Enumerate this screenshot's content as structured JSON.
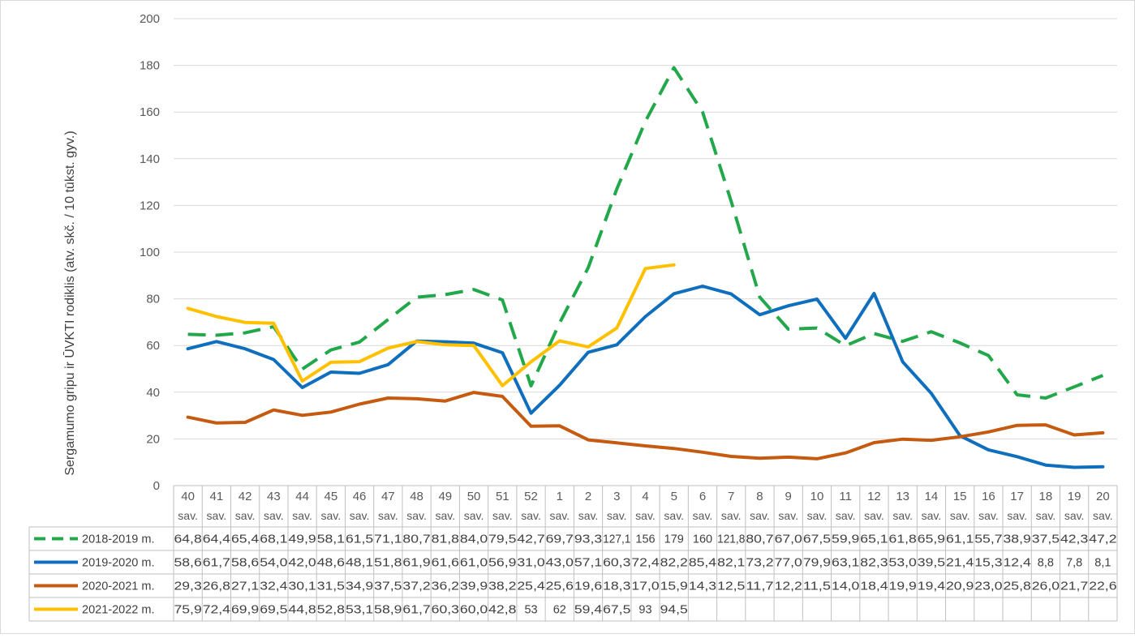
{
  "chart_data": {
    "type": "line",
    "title": "",
    "ylabel": "Sergamumo gripu ir ŪVKTI rodiklis (atv. skč. / 10 tūkst. gyv.)",
    "ylim": [
      0,
      200
    ],
    "yticks": [
      0,
      20,
      40,
      60,
      80,
      100,
      120,
      140,
      160,
      180,
      200
    ],
    "categories": [
      {
        "week": "40",
        "unit": "sav."
      },
      {
        "week": "41",
        "unit": "sav."
      },
      {
        "week": "42",
        "unit": "sav."
      },
      {
        "week": "43",
        "unit": "sav."
      },
      {
        "week": "44",
        "unit": "sav."
      },
      {
        "week": "45",
        "unit": "sav."
      },
      {
        "week": "46",
        "unit": "sav."
      },
      {
        "week": "47",
        "unit": "sav."
      },
      {
        "week": "48",
        "unit": "sav."
      },
      {
        "week": "49",
        "unit": "sav."
      },
      {
        "week": "50",
        "unit": "sav."
      },
      {
        "week": "51",
        "unit": "sav."
      },
      {
        "week": "52",
        "unit": "sav."
      },
      {
        "week": "1",
        "unit": "sav."
      },
      {
        "week": "2",
        "unit": "sav."
      },
      {
        "week": "3",
        "unit": "sav."
      },
      {
        "week": "4",
        "unit": "sav."
      },
      {
        "week": "5",
        "unit": "sav."
      },
      {
        "week": "6",
        "unit": "sav."
      },
      {
        "week": "7",
        "unit": "sav."
      },
      {
        "week": "8",
        "unit": "sav."
      },
      {
        "week": "9",
        "unit": "sav."
      },
      {
        "week": "10",
        "unit": "sav."
      },
      {
        "week": "11",
        "unit": "sav."
      },
      {
        "week": "12",
        "unit": "sav."
      },
      {
        "week": "13",
        "unit": "sav."
      },
      {
        "week": "14",
        "unit": "sav."
      },
      {
        "week": "15",
        "unit": "sav."
      },
      {
        "week": "16",
        "unit": "sav."
      },
      {
        "week": "17",
        "unit": "sav."
      },
      {
        "week": "18",
        "unit": "sav."
      },
      {
        "week": "19",
        "unit": "sav."
      },
      {
        "week": "20",
        "unit": "sav."
      }
    ],
    "grid": true,
    "legend": "data-table-left",
    "series": [
      {
        "name": "2018-2019 m.",
        "color": "#22a84a",
        "dash": true,
        "values": [
          64.8,
          64.4,
          65.4,
          68.1,
          49.9,
          58.1,
          61.5,
          71.1,
          80.7,
          81.8,
          84.0,
          79.5,
          42.7,
          69.7,
          93.3,
          127.1,
          156,
          179,
          160,
          121.8,
          80.7,
          67.0,
          67.5,
          59.9,
          65.1,
          61.8,
          65.9,
          61.1,
          55.7,
          38.9,
          37.5,
          42.3,
          47.2
        ],
        "labels": [
          "64,8",
          "64,4",
          "65,4",
          "68,1",
          "49,9",
          "58,1",
          "61,5",
          "71,1",
          "80,7",
          "81,8",
          "84,0",
          "79,5",
          "42,7",
          "69,7",
          "93,3",
          "127,1",
          "156",
          "179",
          "160",
          "121,8",
          "80,7",
          "67,0",
          "67,5",
          "59,9",
          "65,1",
          "61,8",
          "65,9",
          "61,1",
          "55,7",
          "38,9",
          "37,5",
          "42,3",
          "47,2"
        ]
      },
      {
        "name": "2019-2020 m.",
        "color": "#0f6fbd",
        "dash": false,
        "values": [
          58.6,
          61.7,
          58.6,
          54.0,
          42.0,
          48.6,
          48.1,
          51.8,
          61.9,
          61.6,
          61.0,
          56.9,
          31.0,
          43.0,
          57.1,
          60.3,
          72.4,
          82.2,
          85.4,
          82.1,
          73.2,
          77.0,
          79.9,
          63.1,
          82.3,
          53.0,
          39.5,
          21.4,
          15.3,
          12.4,
          8.8,
          7.8,
          8.1
        ],
        "labels": [
          "58,6",
          "61,7",
          "58,6",
          "54,0",
          "42,0",
          "48,6",
          "48,1",
          "51,8",
          "61,9",
          "61,6",
          "61,0",
          "56,9",
          "31,0",
          "43,0",
          "57,1",
          "60,3",
          "72,4",
          "82,2",
          "85,4",
          "82,1",
          "73,2",
          "77,0",
          "79,9",
          "63,1",
          "82,3",
          "53,0",
          "39,5",
          "21,4",
          "15,3",
          "12,4",
          "8,8",
          "7,8",
          "8,1"
        ]
      },
      {
        "name": "2020-2021 m.",
        "color": "#c55a11",
        "dash": false,
        "values": [
          29.3,
          26.8,
          27.1,
          32.4,
          30.1,
          31.5,
          34.9,
          37.5,
          37.2,
          36.2,
          39.9,
          38.2,
          25.4,
          25.6,
          19.6,
          18.3,
          17.0,
          15.9,
          14.3,
          12.5,
          11.7,
          12.2,
          11.5,
          14.0,
          18.4,
          19.9,
          19.4,
          20.9,
          23.0,
          25.8,
          26.0,
          21.7,
          22.6
        ],
        "labels": [
          "29,3",
          "26,8",
          "27,1",
          "32,4",
          "30,1",
          "31,5",
          "34,9",
          "37,5",
          "37,2",
          "36,2",
          "39,9",
          "38,2",
          "25,4",
          "25,6",
          "19,6",
          "18,3",
          "17,0",
          "15,9",
          "14,3",
          "12,5",
          "11,7",
          "12,2",
          "11,5",
          "14,0",
          "18,4",
          "19,9",
          "19,4",
          "20,9",
          "23,0",
          "25,8",
          "26,0",
          "21,7",
          "22,6"
        ]
      },
      {
        "name": "2021-2022 m.",
        "color": "#ffc000",
        "dash": false,
        "values": [
          75.9,
          72.4,
          69.9,
          69.5,
          44.8,
          52.8,
          53.1,
          58.9,
          61.7,
          60.3,
          60.0,
          42.8,
          53,
          62,
          59.4,
          67.5,
          93,
          94.5,
          null,
          null,
          null,
          null,
          null,
          null,
          null,
          null,
          null,
          null,
          null,
          null,
          null,
          null,
          null
        ],
        "labels": [
          "75,9",
          "72,4",
          "69,9",
          "69,5",
          "44,8",
          "52,8",
          "53,1",
          "58,9",
          "61,7",
          "60,3",
          "60,0",
          "42,8",
          "53",
          "62",
          "59,4",
          "67,5",
          "93",
          "94,5",
          "",
          "",
          "",
          "",
          "",
          "",
          "",
          "",
          "",
          "",
          "",
          "",
          "",
          "",
          ""
        ]
      }
    ]
  }
}
